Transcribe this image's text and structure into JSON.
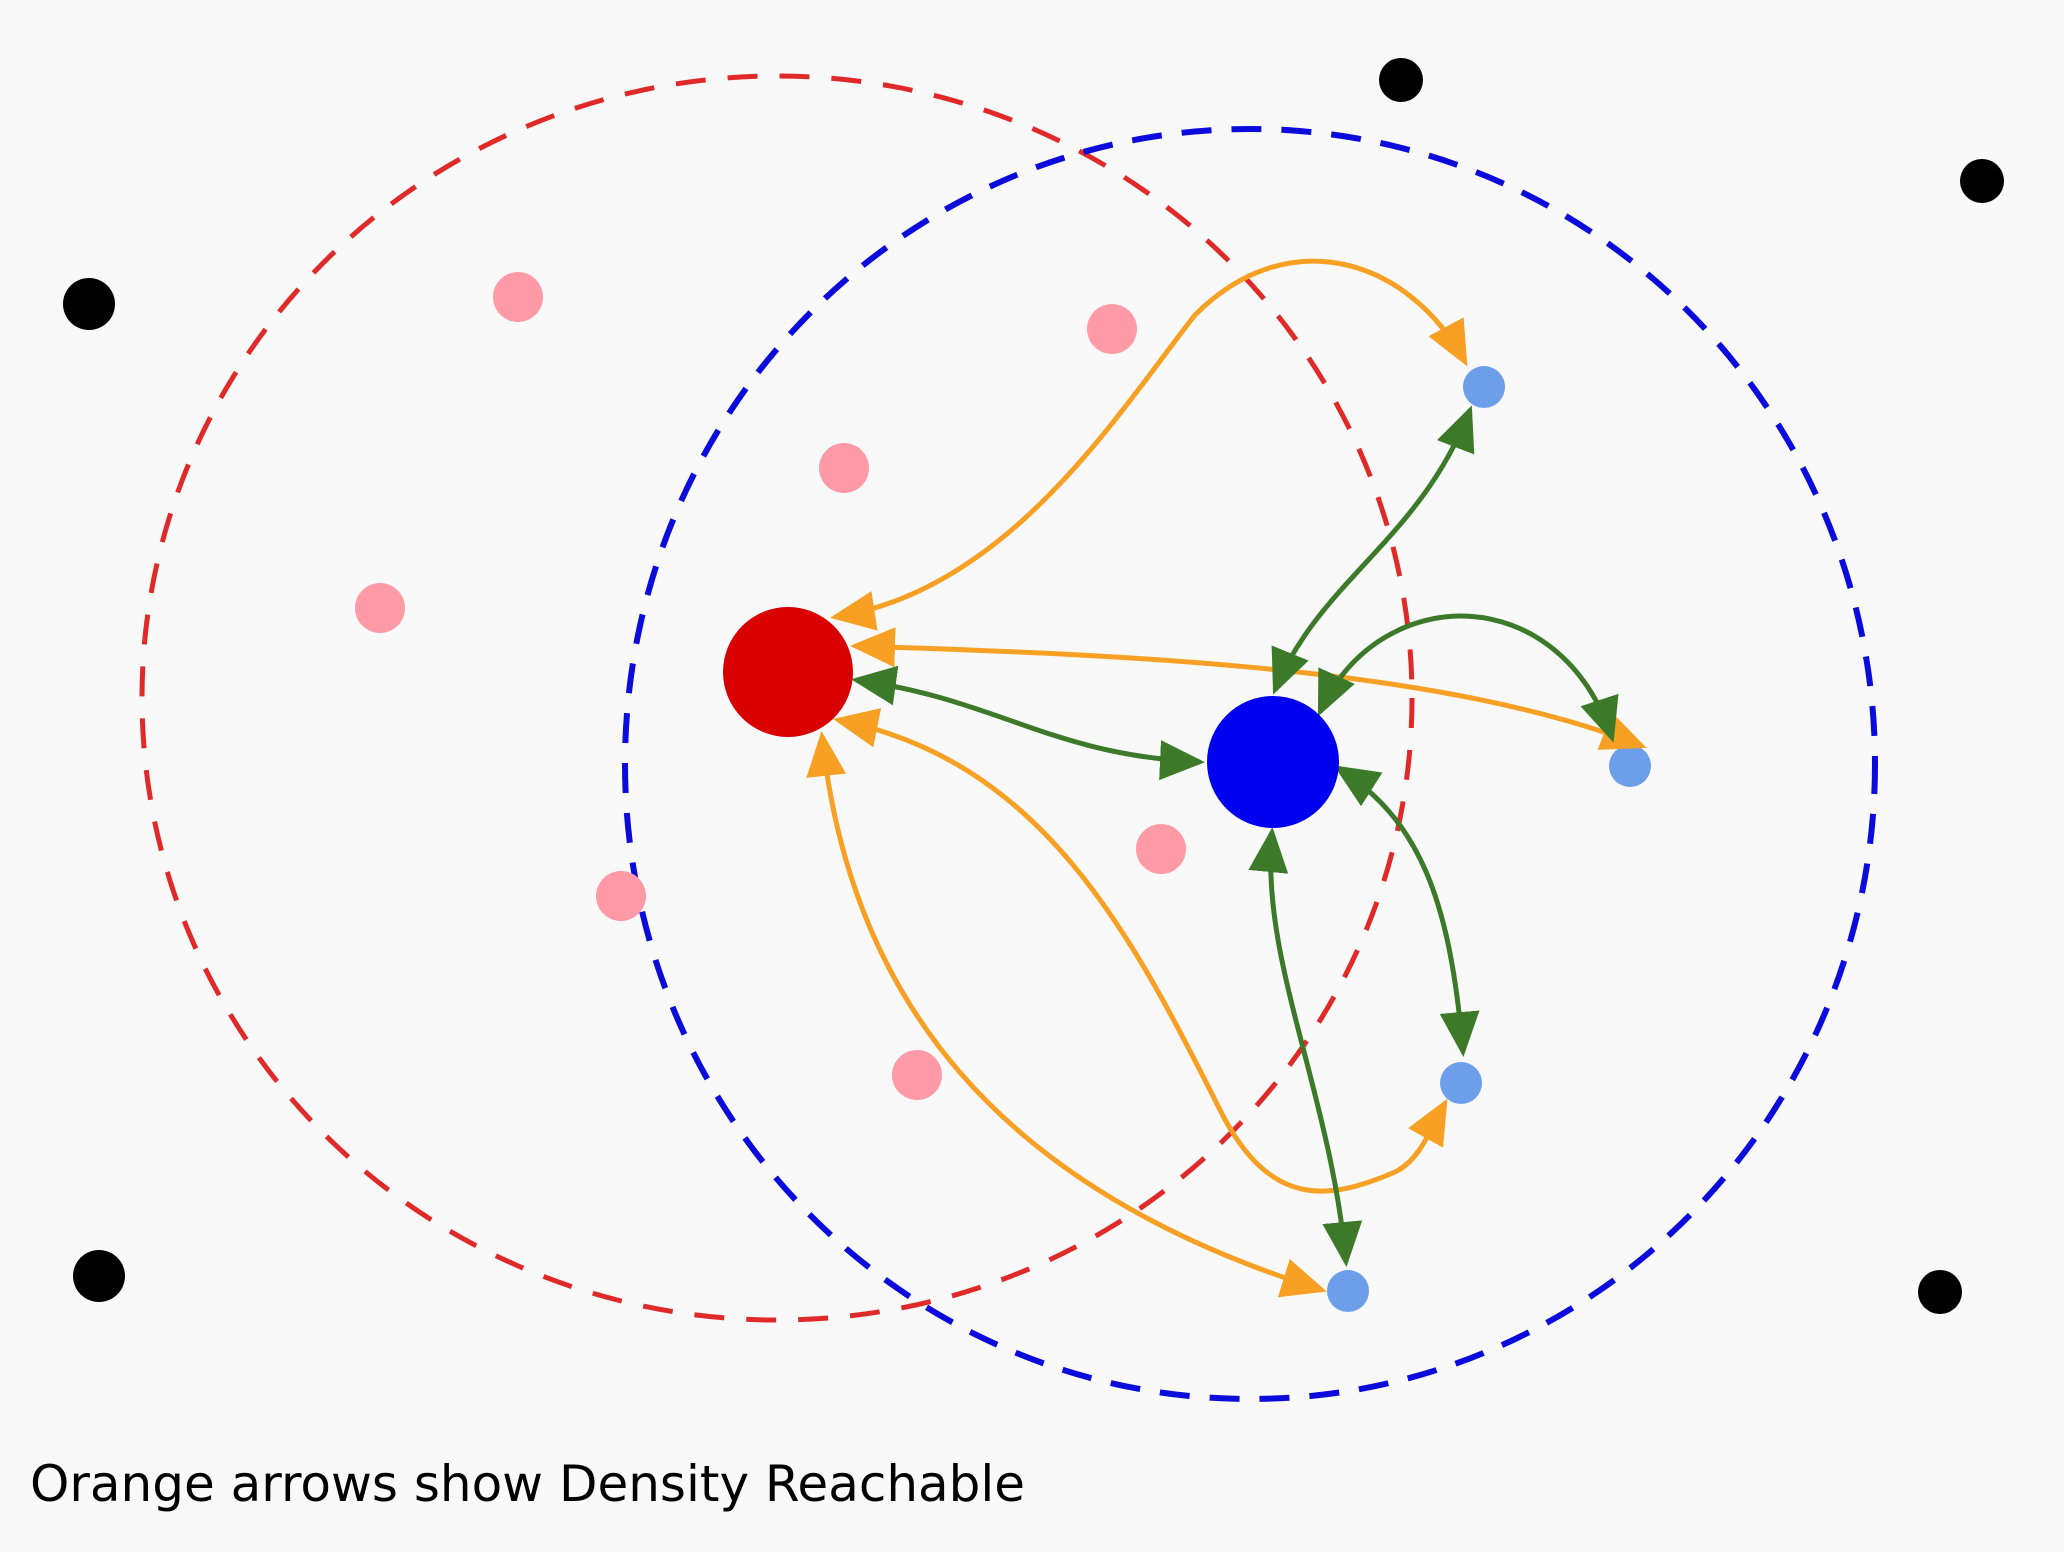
{
  "caption": "Orange arrows show Density Reachable",
  "colors": {
    "background": "#f9f9f9",
    "red_core": "#d80000",
    "blue_core": "#0000f0",
    "pink_point": "#ff9aa6",
    "light_blue_point": "#6d9eea",
    "noise_point": "#000000",
    "orange_arrow": "#f7a024",
    "green_arrow": "#3c7a2a",
    "red_circle": "#e02a2a",
    "blue_circle": "#0b0bdc"
  },
  "legend_meaning": {
    "orange_arrows": "Density Reachable"
  }
}
